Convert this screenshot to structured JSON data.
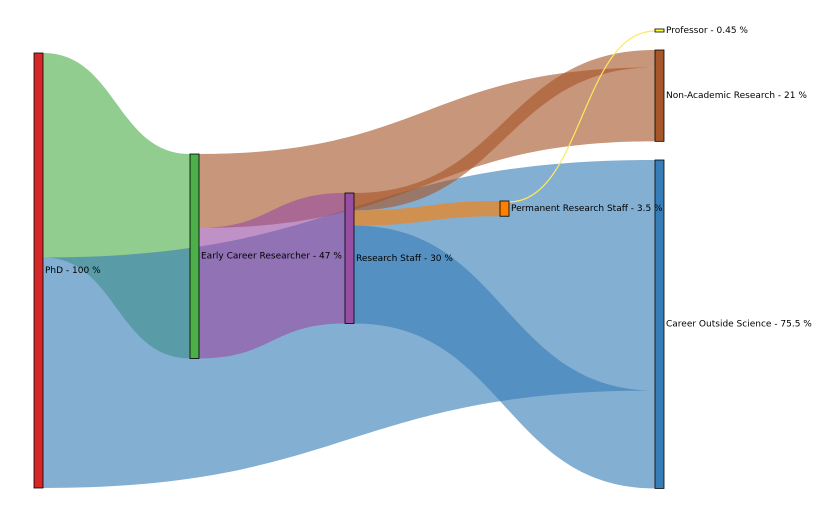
{
  "chart_data": {
    "type": "sankey",
    "unit": "%",
    "nodes": [
      {
        "id": "phd",
        "label": "PhD - 100 %",
        "value": 100,
        "color": "#d62728"
      },
      {
        "id": "ecr",
        "label": "Early Career Researcher - 47 %",
        "value": 47,
        "color": "#4daf4a"
      },
      {
        "id": "rs",
        "label": "Research Staff - 30 %",
        "value": 30,
        "color": "#984ea3"
      },
      {
        "id": "prs",
        "label": "Permanent Research Staff - 3.5 %",
        "value": 3.5,
        "color": "#ff7f00"
      },
      {
        "id": "prof",
        "label": "Professor - 0.45 %",
        "value": 0.45,
        "color": "#ffff33"
      },
      {
        "id": "nar",
        "label": "Non-Academic Research - 21 %",
        "value": 21,
        "color": "#a65628"
      },
      {
        "id": "cos",
        "label": "Career Outside Science - 75.5 %",
        "value": 75.5,
        "color": "#377eb8"
      }
    ],
    "links": [
      {
        "source": "phd",
        "target": "ecr",
        "value": 47
      },
      {
        "source": "phd",
        "target": "cos",
        "value": 53
      },
      {
        "source": "ecr",
        "target": "nar",
        "value": 17
      },
      {
        "source": "ecr",
        "target": "rs",
        "value": 30
      },
      {
        "source": "rs",
        "target": "nar",
        "value": 4
      },
      {
        "source": "rs",
        "target": "prs",
        "value": 3.5
      },
      {
        "source": "rs",
        "target": "cos",
        "value": 22.5
      },
      {
        "source": "prs",
        "target": "prof",
        "value": 0.45
      }
    ]
  }
}
